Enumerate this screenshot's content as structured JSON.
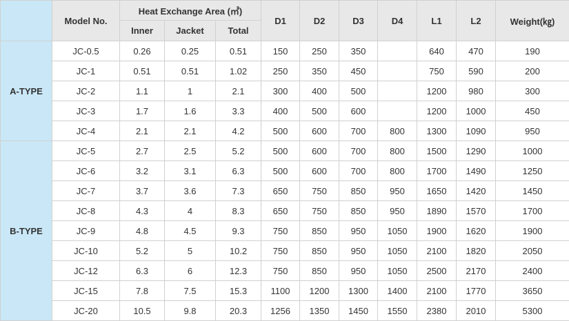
{
  "header": {
    "model_no": "Model No.",
    "heat_exchange_area": "Heat Exchange Area (㎡)",
    "inner": "Inner",
    "jacket": "Jacket",
    "total": "Total",
    "d1": "D1",
    "d2": "D2",
    "d3": "D3",
    "d4": "D4",
    "l1": "L1",
    "l2": "L2",
    "weight": "Weight(㎏)"
  },
  "groups": [
    {
      "label": "A-TYPE",
      "rows": [
        {
          "model": "JC-0.5",
          "inner": "0.26",
          "jacket": "0.25",
          "total": "0.51",
          "d1": "150",
          "d2": "250",
          "d3": "350",
          "d4": "",
          "l1": "640",
          "l2": "470",
          "weight": "190"
        },
        {
          "model": "JC-1",
          "inner": "0.51",
          "jacket": "0.51",
          "total": "1.02",
          "d1": "250",
          "d2": "350",
          "d3": "450",
          "d4": "",
          "l1": "750",
          "l2": "590",
          "weight": "200"
        },
        {
          "model": "JC-2",
          "inner": "1.1",
          "jacket": "1",
          "total": "2.1",
          "d1": "300",
          "d2": "400",
          "d3": "500",
          "d4": "",
          "l1": "1200",
          "l2": "980",
          "weight": "300"
        },
        {
          "model": "JC-3",
          "inner": "1.7",
          "jacket": "1.6",
          "total": "3.3",
          "d1": "400",
          "d2": "500",
          "d3": "600",
          "d4": "",
          "l1": "1200",
          "l2": "1000",
          "weight": "450"
        },
        {
          "model": "JC-4",
          "inner": "2.1",
          "jacket": "2.1",
          "total": "4.2",
          "d1": "500",
          "d2": "600",
          "d3": "700",
          "d4": "800",
          "l1": "1300",
          "l2": "1090",
          "weight": "950"
        }
      ]
    },
    {
      "label": "B-TYPE",
      "rows": [
        {
          "model": "JC-5",
          "inner": "2.7",
          "jacket": "2.5",
          "total": "5.2",
          "d1": "500",
          "d2": "600",
          "d3": "700",
          "d4": "800",
          "l1": "1500",
          "l2": "1290",
          "weight": "1000"
        },
        {
          "model": "JC-6",
          "inner": "3.2",
          "jacket": "3.1",
          "total": "6.3",
          "d1": "500",
          "d2": "600",
          "d3": "700",
          "d4": "800",
          "l1": "1700",
          "l2": "1490",
          "weight": "1250"
        },
        {
          "model": "JC-7",
          "inner": "3.7",
          "jacket": "3.6",
          "total": "7.3",
          "d1": "650",
          "d2": "750",
          "d3": "850",
          "d4": "950",
          "l1": "1650",
          "l2": "1420",
          "weight": "1450"
        },
        {
          "model": "JC-8",
          "inner": "4.3",
          "jacket": "4",
          "total": "8.3",
          "d1": "650",
          "d2": "750",
          "d3": "850",
          "d4": "950",
          "l1": "1890",
          "l2": "1570",
          "weight": "1700"
        },
        {
          "model": "JC-9",
          "inner": "4.8",
          "jacket": "4.5",
          "total": "9.3",
          "d1": "750",
          "d2": "850",
          "d3": "950",
          "d4": "1050",
          "l1": "1900",
          "l2": "1620",
          "weight": "1900"
        },
        {
          "model": "JC-10",
          "inner": "5.2",
          "jacket": "5",
          "total": "10.2",
          "d1": "750",
          "d2": "850",
          "d3": "950",
          "d4": "1050",
          "l1": "2100",
          "l2": "1820",
          "weight": "2050"
        },
        {
          "model": "JC-12",
          "inner": "6.3",
          "jacket": "6",
          "total": "12.3",
          "d1": "750",
          "d2": "850",
          "d3": "950",
          "d4": "1050",
          "l1": "2500",
          "l2": "2170",
          "weight": "2400"
        },
        {
          "model": "JC-15",
          "inner": "7.8",
          "jacket": "7.5",
          "total": "15.3",
          "d1": "1100",
          "d2": "1200",
          "d3": "1300",
          "d4": "1400",
          "l1": "2100",
          "l2": "1770",
          "weight": "3650"
        },
        {
          "model": "JC-20",
          "inner": "10.5",
          "jacket": "9.8",
          "total": "20.3",
          "d1": "1256",
          "d2": "1350",
          "d3": "1450",
          "d4": "1550",
          "l1": "2380",
          "l2": "2010",
          "weight": "5300"
        }
      ]
    }
  ],
  "colors": {
    "group_cell_bg": "#c9e7f7",
    "header_bg": "#e8e8e8",
    "border": "#d0d0d0",
    "text": "#333333"
  }
}
